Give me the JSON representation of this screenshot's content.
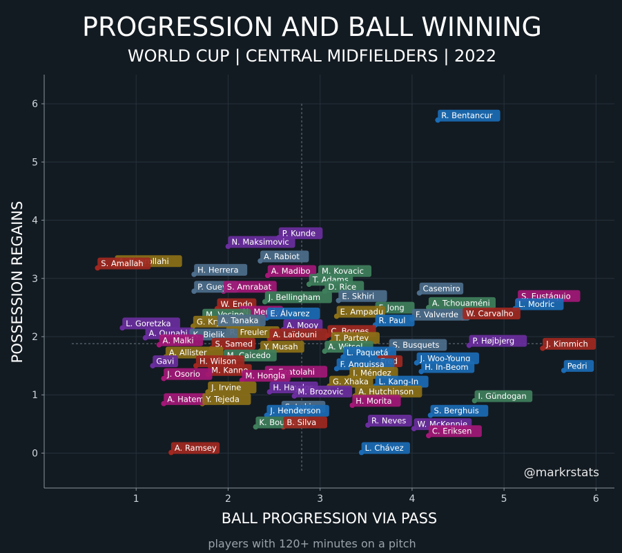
{
  "title": "PROGRESSION AND BALL WINNING",
  "subtitle": "WORLD CUP | CENTRAL MIDFIELDERS | 2022",
  "footnote": "players with 120+ minutes on a pitch",
  "watermark": "@markrstats",
  "colors": {
    "background": "#131b22",
    "purple": "#6a2e9e",
    "magenta": "#a31877",
    "red": "#a02821",
    "olive": "#8c7018",
    "blue": "#1b6bb5",
    "green": "#3f7f5c",
    "slate": "#4d6e8c"
  },
  "chart_data": {
    "type": "scatter",
    "xlabel": "BALL PROGRESSION VIA PASS",
    "ylabel": "POSSESSION REGAINS",
    "xlim": [
      0,
      6.2
    ],
    "ylim": [
      -0.6,
      6.5
    ],
    "xticks": [
      1,
      2,
      3,
      4,
      5,
      6
    ],
    "yticks": [
      0,
      1,
      2,
      3,
      4,
      5,
      6
    ],
    "grid": true,
    "reference_lines": {
      "x": 2.8,
      "y": 1.88
    },
    "points": [
      {
        "name": "R. Bentancur",
        "x": 4.28,
        "y": 5.72,
        "color": "blue"
      },
      {
        "name": "P. Kunde",
        "x": 2.55,
        "y": 3.7,
        "color": "purple"
      },
      {
        "name": "N. Maksimovic",
        "x": 2.0,
        "y": 3.55,
        "color": "purple"
      },
      {
        "name": "A. Rabiot",
        "x": 2.35,
        "y": 3.3,
        "color": "slate"
      },
      {
        "name": "A. Noorollahi",
        "x": 0.77,
        "y": 3.22,
        "color": "olive"
      },
      {
        "name": "S. Amallah",
        "x": 0.58,
        "y": 3.18,
        "color": "red"
      },
      {
        "name": "H. Herrera",
        "x": 1.63,
        "y": 3.07,
        "color": "slate"
      },
      {
        "name": "A. Madibo",
        "x": 2.43,
        "y": 3.05,
        "color": "magenta"
      },
      {
        "name": "M. Kovacic",
        "x": 2.98,
        "y": 3.05,
        "color": "green"
      },
      {
        "name": "T. Adams",
        "x": 2.88,
        "y": 2.9,
        "color": "green"
      },
      {
        "name": "P. Gueye",
        "x": 1.63,
        "y": 2.78,
        "color": "slate"
      },
      {
        "name": "S. Amrabat",
        "x": 1.95,
        "y": 2.78,
        "color": "magenta"
      },
      {
        "name": "Casemiro",
        "x": 4.08,
        "y": 2.75,
        "color": "slate"
      },
      {
        "name": "D. Rice",
        "x": 3.05,
        "y": 2.78,
        "color": "green"
      },
      {
        "name": "S. Eustáquio",
        "x": 5.15,
        "y": 2.62,
        "color": "magenta"
      },
      {
        "name": "J. Bellingham",
        "x": 2.4,
        "y": 2.6,
        "color": "green"
      },
      {
        "name": "E. Skhiri",
        "x": 3.2,
        "y": 2.62,
        "color": "slate"
      },
      {
        "name": "A. Tchouaméni",
        "x": 4.18,
        "y": 2.5,
        "color": "green"
      },
      {
        "name": "L. Modric",
        "x": 5.12,
        "y": 2.48,
        "color": "blue"
      },
      {
        "name": "W. Endo",
        "x": 1.88,
        "y": 2.48,
        "color": "red"
      },
      {
        "name": "N. Mendy",
        "x": 2.12,
        "y": 2.35,
        "color": "magenta"
      },
      {
        "name": "F. Jong",
        "x": 3.6,
        "y": 2.42,
        "color": "green"
      },
      {
        "name": "E. Ampadu",
        "x": 3.18,
        "y": 2.35,
        "color": "olive"
      },
      {
        "name": "M. Vecino",
        "x": 1.72,
        "y": 2.3,
        "color": "green"
      },
      {
        "name": "E. Álvarez",
        "x": 2.42,
        "y": 2.32,
        "color": "blue"
      },
      {
        "name": "F. Valverde",
        "x": 4.0,
        "y": 2.3,
        "color": "slate"
      },
      {
        "name": "W. Carvalho",
        "x": 4.55,
        "y": 2.32,
        "color": "red"
      },
      {
        "name": "G. Krychowiak",
        "x": 1.62,
        "y": 2.18,
        "color": "olive"
      },
      {
        "name": "A. Tanaka",
        "x": 1.88,
        "y": 2.2,
        "color": "slate"
      },
      {
        "name": "R. Paul",
        "x": 3.6,
        "y": 2.2,
        "color": "blue"
      },
      {
        "name": "L. Goretzka",
        "x": 0.85,
        "y": 2.15,
        "color": "purple"
      },
      {
        "name": "A. Mooy",
        "x": 2.6,
        "y": 2.12,
        "color": "purple"
      },
      {
        "name": "C. Borges",
        "x": 3.08,
        "y": 2.02,
        "color": "red"
      },
      {
        "name": "A. Ounahi",
        "x": 1.1,
        "y": 1.98,
        "color": "purple"
      },
      {
        "name": "R. Freuler",
        "x": 1.98,
        "y": 2.0,
        "color": "olive"
      },
      {
        "name": "K. Bielik",
        "x": 1.58,
        "y": 1.96,
        "color": "slate"
      },
      {
        "name": "A. Laïdouni",
        "x": 2.45,
        "y": 1.96,
        "color": "red"
      },
      {
        "name": "T. Partey",
        "x": 3.12,
        "y": 1.9,
        "color": "olive"
      },
      {
        "name": "A. Malki",
        "x": 1.25,
        "y": 1.86,
        "color": "magenta"
      },
      {
        "name": "P. Højbjerg",
        "x": 4.62,
        "y": 1.85,
        "color": "purple"
      },
      {
        "name": "J. Kimmich",
        "x": 5.42,
        "y": 1.8,
        "color": "red"
      },
      {
        "name": "S. Samed",
        "x": 1.82,
        "y": 1.8,
        "color": "red"
      },
      {
        "name": "Y. Musah",
        "x": 2.35,
        "y": 1.75,
        "color": "olive"
      },
      {
        "name": "A. Witsel",
        "x": 3.05,
        "y": 1.75,
        "color": "green"
      },
      {
        "name": "S. Busquets",
        "x": 3.75,
        "y": 1.78,
        "color": "slate"
      },
      {
        "name": "A. Allister",
        "x": 1.32,
        "y": 1.65,
        "color": "olive"
      },
      {
        "name": "L. Paquetá",
        "x": 3.25,
        "y": 1.65,
        "color": "blue"
      },
      {
        "name": "M. Caicedo",
        "x": 1.95,
        "y": 1.6,
        "color": "green"
      },
      {
        "name": "J. Woo-Young",
        "x": 4.05,
        "y": 1.55,
        "color": "blue"
      },
      {
        "name": "H. Wilson",
        "x": 1.65,
        "y": 1.5,
        "color": "red"
      },
      {
        "name": "Gavi",
        "x": 1.18,
        "y": 1.5,
        "color": "purple"
      },
      {
        "name": "Fred",
        "x": 3.62,
        "y": 1.5,
        "color": "red"
      },
      {
        "name": "F. Anguissa",
        "x": 3.18,
        "y": 1.45,
        "color": "blue"
      },
      {
        "name": "Pedri",
        "x": 5.65,
        "y": 1.42,
        "color": "blue"
      },
      {
        "name": "H. In-Beom",
        "x": 4.1,
        "y": 1.4,
        "color": "blue"
      },
      {
        "name": "M. Kanno",
        "x": 1.78,
        "y": 1.35,
        "color": "red"
      },
      {
        "name": "S. Ezatolahi",
        "x": 2.4,
        "y": 1.32,
        "color": "magenta"
      },
      {
        "name": "J. Méndez",
        "x": 3.32,
        "y": 1.3,
        "color": "olive"
      },
      {
        "name": "J. Osorio",
        "x": 1.3,
        "y": 1.28,
        "color": "magenta"
      },
      {
        "name": "M. Hongla",
        "x": 2.15,
        "y": 1.25,
        "color": "magenta"
      },
      {
        "name": "G. Xhaka",
        "x": 3.1,
        "y": 1.15,
        "color": "olive"
      },
      {
        "name": "L. Kang-In",
        "x": 3.6,
        "y": 1.15,
        "color": "blue"
      },
      {
        "name": "J. Irvine",
        "x": 1.78,
        "y": 1.05,
        "color": "olive"
      },
      {
        "name": "H. Haydos",
        "x": 2.45,
        "y": 1.05,
        "color": "purple"
      },
      {
        "name": "M. Brozovic",
        "x": 2.72,
        "y": 0.98,
        "color": "purple"
      },
      {
        "name": "A. Hutchinson",
        "x": 3.38,
        "y": 0.98,
        "color": "olive"
      },
      {
        "name": "I. Gündogan",
        "x": 4.68,
        "y": 0.9,
        "color": "green"
      },
      {
        "name": "A. Hatem",
        "x": 1.3,
        "y": 0.85,
        "color": "magenta"
      },
      {
        "name": "Y. Tejeda",
        "x": 1.72,
        "y": 0.85,
        "color": "olive"
      },
      {
        "name": "H. Morita",
        "x": 3.35,
        "y": 0.82,
        "color": "magenta"
      },
      {
        "name": "S. Lukic",
        "x": 2.58,
        "y": 0.72,
        "color": "slate"
      },
      {
        "name": "J. Henderson",
        "x": 2.42,
        "y": 0.65,
        "color": "blue"
      },
      {
        "name": "S. Berghuis",
        "x": 4.2,
        "y": 0.65,
        "color": "blue"
      },
      {
        "name": "K. Boudiaf",
        "x": 2.3,
        "y": 0.45,
        "color": "green"
      },
      {
        "name": "B. Silva",
        "x": 2.6,
        "y": 0.45,
        "color": "red"
      },
      {
        "name": "R. Neves",
        "x": 3.52,
        "y": 0.48,
        "color": "purple"
      },
      {
        "name": "W. McKennie",
        "x": 4.02,
        "y": 0.42,
        "color": "purple"
      },
      {
        "name": "C. Eriksen",
        "x": 4.18,
        "y": 0.3,
        "color": "magenta"
      },
      {
        "name": "A. Ramsey",
        "x": 1.38,
        "y": 0.01,
        "color": "red"
      },
      {
        "name": "L. Chávez",
        "x": 3.45,
        "y": 0.01,
        "color": "blue"
      }
    ]
  }
}
